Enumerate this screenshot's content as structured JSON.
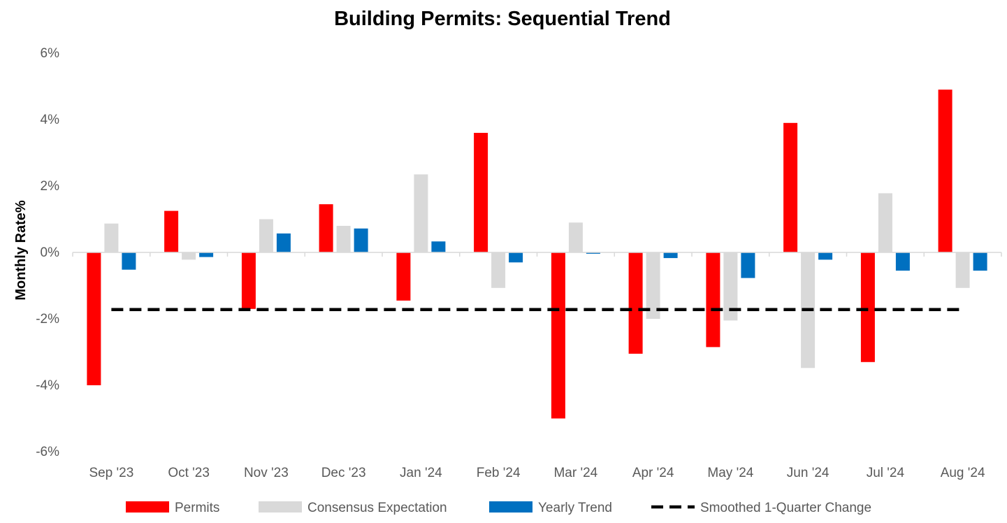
{
  "chart_data": {
    "type": "bar",
    "title": "Building Permits: Sequential Trend",
    "xlabel": "",
    "ylabel": "Monthly Rate%",
    "categories": [
      "Sep '23",
      "Oct '23",
      "Nov '23",
      "Dec '23",
      "Jan '24",
      "Feb '24",
      "Mar '24",
      "Apr '24",
      "May '24",
      "Jun '24",
      "Jul '24",
      "Aug '24"
    ],
    "ylim": [
      -6,
      6
    ],
    "yticks": [
      6,
      4,
      2,
      0,
      -2,
      -4,
      -6
    ],
    "ytick_labels": [
      "6%",
      "4%",
      "2%",
      "0%",
      "-2%",
      "-4%",
      "-6%"
    ],
    "grid": false,
    "legend_position": "bottom",
    "series": [
      {
        "name": "Permits",
        "color": "#ff0000",
        "values": [
          -4.0,
          1.25,
          -1.7,
          1.45,
          -1.45,
          3.6,
          -5.0,
          -3.05,
          -2.85,
          3.9,
          -3.3,
          4.9
        ]
      },
      {
        "name": "Consensus Expectation",
        "color": "#d9d9d9",
        "values": [
          0.87,
          -0.22,
          1.0,
          0.8,
          2.35,
          -1.07,
          0.9,
          -2.0,
          -2.05,
          -3.48,
          1.78,
          -1.07
        ]
      },
      {
        "name": "Yearly Trend",
        "color": "#0070c0",
        "values": [
          -0.52,
          -0.14,
          0.57,
          0.72,
          0.33,
          -0.3,
          -0.04,
          -0.17,
          -0.77,
          -0.22,
          -0.55,
          -0.55
        ]
      }
    ],
    "reference_line": {
      "name": "Smoothed 1-Quarter Change",
      "value": -1.72,
      "color": "#000000",
      "style": "dashed"
    }
  }
}
